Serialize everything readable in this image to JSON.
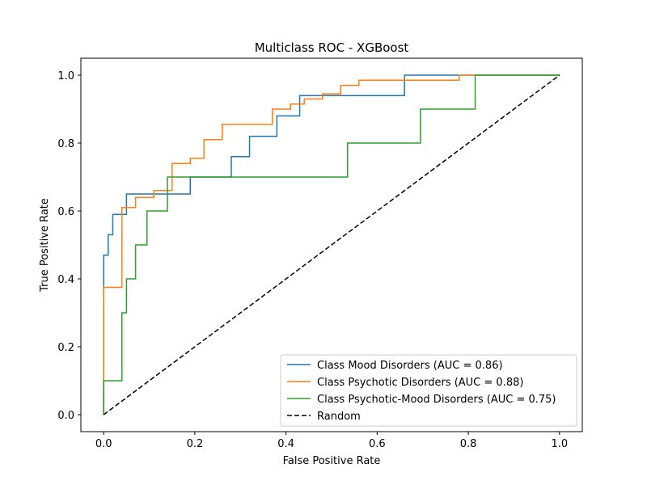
{
  "chart_data": {
    "type": "line",
    "title": "Multiclass ROC - XGBoost",
    "xlabel": "False Positive Rate",
    "ylabel": "True Positive Rate",
    "xlim": [
      -0.05,
      1.05
    ],
    "ylim": [
      -0.05,
      1.05
    ],
    "xticks": [
      0.0,
      0.2,
      0.4,
      0.6,
      0.8,
      1.0
    ],
    "xtick_labels": [
      "0.0",
      "0.2",
      "0.4",
      "0.6",
      "0.8",
      "1.0"
    ],
    "yticks": [
      0.0,
      0.2,
      0.4,
      0.6,
      0.8,
      1.0
    ],
    "ytick_labels": [
      "0.0",
      "0.2",
      "0.4",
      "0.6",
      "0.8",
      "1.0"
    ],
    "grid": false,
    "legend_position": "lower-right",
    "series": [
      {
        "name": "Class Mood Disorders (AUC = 0.86)",
        "color": "#1f77b4",
        "style": "solid",
        "x": [
          0.0,
          0.0,
          0.0,
          0.0,
          0.01,
          0.01,
          0.02,
          0.02,
          0.05,
          0.05,
          0.19,
          0.19,
          0.28,
          0.28,
          0.32,
          0.32,
          0.38,
          0.38,
          0.43,
          0.43,
          0.66,
          0.66,
          1.0
        ],
        "y": [
          0.0,
          0.38,
          0.38,
          0.47,
          0.47,
          0.53,
          0.53,
          0.59,
          0.59,
          0.65,
          0.65,
          0.7,
          0.7,
          0.76,
          0.76,
          0.82,
          0.82,
          0.88,
          0.88,
          0.94,
          0.94,
          1.0,
          1.0
        ]
      },
      {
        "name": "Class Psychotic Disorders (AUC = 0.88)",
        "color": "#ff7f0e",
        "style": "solid",
        "x": [
          0.0,
          0.0,
          0.04,
          0.04,
          0.07,
          0.07,
          0.11,
          0.11,
          0.15,
          0.15,
          0.19,
          0.19,
          0.22,
          0.22,
          0.26,
          0.26,
          0.37,
          0.37,
          0.41,
          0.41,
          0.44,
          0.44,
          0.48,
          0.48,
          0.52,
          0.52,
          0.56,
          0.56,
          0.78,
          0.78,
          1.0
        ],
        "y": [
          0.0,
          0.375,
          0.375,
          0.61,
          0.61,
          0.64,
          0.64,
          0.66,
          0.66,
          0.74,
          0.74,
          0.755,
          0.755,
          0.81,
          0.81,
          0.855,
          0.855,
          0.9,
          0.9,
          0.915,
          0.915,
          0.93,
          0.93,
          0.945,
          0.945,
          0.97,
          0.97,
          0.985,
          0.985,
          1.0,
          1.0
        ]
      },
      {
        "name": "Class Psychotic-Mood Disorders (AUC = 0.75)",
        "color": "#2ca02c",
        "style": "solid",
        "x": [
          0.0,
          0.0,
          0.04,
          0.04,
          0.05,
          0.05,
          0.07,
          0.07,
          0.095,
          0.095,
          0.14,
          0.14,
          0.535,
          0.535,
          0.695,
          0.695,
          0.815,
          0.815,
          1.0
        ],
        "y": [
          0.0,
          0.1,
          0.1,
          0.3,
          0.3,
          0.4,
          0.4,
          0.5,
          0.5,
          0.6,
          0.6,
          0.7,
          0.7,
          0.8,
          0.8,
          0.9,
          0.9,
          1.0,
          1.0
        ]
      },
      {
        "name": "Random",
        "color": "#000000",
        "style": "dashed",
        "x": [
          0.0,
          1.0
        ],
        "y": [
          0.0,
          1.0
        ]
      }
    ]
  }
}
